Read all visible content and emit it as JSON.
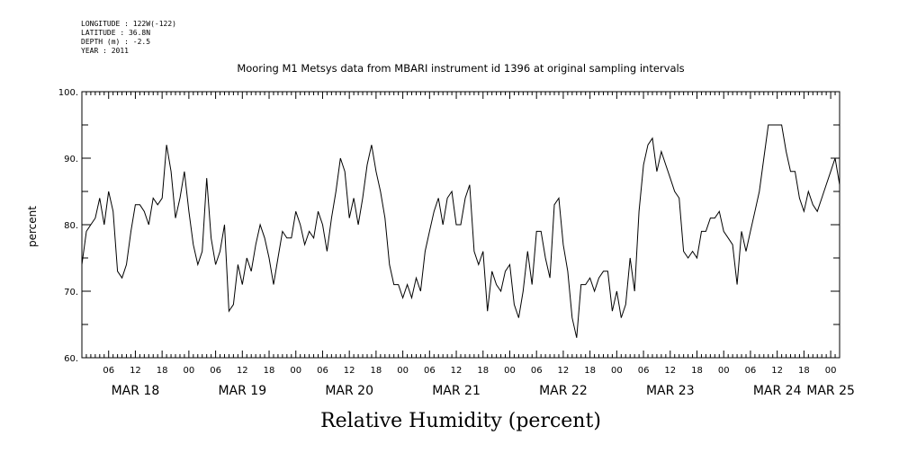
{
  "header": {
    "lines": [
      "LONGITUDE : 122W(-122)",
      "LATITUDE : 36.8N",
      "DEPTH (m) : -2.5",
      "YEAR : 2011"
    ]
  },
  "chart_data": {
    "type": "line",
    "title": "Mooring M1 Metsys data from MBARI instrument id 1396 at original sampling intervals",
    "xlabel": "Relative Humidity (percent)",
    "ylabel": "percent",
    "ylim": [
      60,
      100
    ],
    "yticks": [
      60,
      70,
      80,
      90,
      100
    ],
    "ytick_labels": [
      "60.",
      "70.",
      "80.",
      "90.",
      "100."
    ],
    "xlim_hours": [
      0,
      170
    ],
    "x_time_ticks": [
      {
        "h": 6,
        "label": "06"
      },
      {
        "h": 12,
        "label": "12"
      },
      {
        "h": 18,
        "label": "18"
      },
      {
        "h": 24,
        "label": "00"
      },
      {
        "h": 30,
        "label": "06"
      },
      {
        "h": 36,
        "label": "12"
      },
      {
        "h": 42,
        "label": "18"
      },
      {
        "h": 48,
        "label": "00"
      },
      {
        "h": 54,
        "label": "06"
      },
      {
        "h": 60,
        "label": "12"
      },
      {
        "h": 66,
        "label": "18"
      },
      {
        "h": 72,
        "label": "00"
      },
      {
        "h": 78,
        "label": "06"
      },
      {
        "h": 84,
        "label": "12"
      },
      {
        "h": 90,
        "label": "18"
      },
      {
        "h": 96,
        "label": "00"
      },
      {
        "h": 102,
        "label": "06"
      },
      {
        "h": 108,
        "label": "12"
      },
      {
        "h": 114,
        "label": "18"
      },
      {
        "h": 120,
        "label": "00"
      },
      {
        "h": 126,
        "label": "06"
      },
      {
        "h": 132,
        "label": "12"
      },
      {
        "h": 138,
        "label": "18"
      },
      {
        "h": 144,
        "label": "00"
      },
      {
        "h": 150,
        "label": "06"
      },
      {
        "h": 156,
        "label": "12"
      },
      {
        "h": 162,
        "label": "18"
      },
      {
        "h": 168,
        "label": "00"
      }
    ],
    "x_date_labels": [
      {
        "h": 12,
        "label": "MAR 18"
      },
      {
        "h": 36,
        "label": "MAR 19"
      },
      {
        "h": 60,
        "label": "MAR 20"
      },
      {
        "h": 84,
        "label": "MAR 21"
      },
      {
        "h": 108,
        "label": "MAR 22"
      },
      {
        "h": 132,
        "label": "MAR 23"
      },
      {
        "h": 156,
        "label": "MAR 24"
      },
      {
        "h": 168,
        "label": "MAR 25"
      }
    ],
    "series": [
      {
        "x": [
          0,
          1,
          2,
          3,
          4,
          5,
          6,
          7,
          8,
          9,
          10,
          11,
          12,
          13,
          14,
          15,
          16,
          17,
          18,
          19,
          20,
          21,
          22,
          23,
          24,
          25,
          26,
          27,
          28,
          29,
          30,
          31,
          32,
          33,
          34,
          35,
          36,
          37,
          38,
          39,
          40,
          41,
          42,
          43,
          44,
          45,
          46,
          47,
          48,
          49,
          50,
          51,
          52,
          53,
          54,
          55,
          56,
          57,
          58,
          59,
          60,
          61,
          62,
          63,
          64,
          65,
          66,
          67,
          68,
          69,
          70,
          71,
          72,
          73,
          74,
          75,
          76,
          77,
          78,
          79,
          80,
          81,
          82,
          83,
          84,
          85,
          86,
          87,
          88,
          89,
          90,
          91,
          92,
          93,
          94,
          95,
          96,
          97,
          98,
          99,
          100,
          101,
          102,
          103,
          104,
          105,
          106,
          107,
          108,
          109,
          110,
          111,
          112,
          113,
          114,
          115,
          116,
          117,
          118,
          119,
          120,
          121,
          122,
          123,
          124,
          125,
          126,
          127,
          128,
          129,
          130,
          131,
          132,
          133,
          134,
          135,
          136,
          137,
          138,
          139,
          140,
          141,
          142,
          143,
          144,
          145,
          146,
          147,
          148,
          149,
          150,
          151,
          152,
          153,
          154,
          155,
          156,
          157,
          158,
          159,
          160,
          161,
          162,
          163,
          164,
          165,
          166,
          167,
          168,
          169,
          170
        ],
        "y": [
          74,
          79,
          80,
          81,
          84,
          80,
          85,
          82,
          73,
          72,
          74,
          79,
          83,
          83,
          82,
          80,
          84,
          83,
          84,
          92,
          88,
          81,
          84,
          88,
          82,
          77,
          74,
          76,
          87,
          78,
          74,
          76,
          80,
          67,
          68,
          74,
          71,
          75,
          73,
          77,
          80,
          78,
          75,
          71,
          75,
          79,
          78,
          78,
          82,
          80,
          77,
          79,
          78,
          82,
          80,
          76,
          81,
          85,
          90,
          88,
          81,
          84,
          80,
          84,
          89,
          92,
          88,
          85,
          81,
          74,
          71,
          71,
          69,
          71,
          69,
          72,
          70,
          76,
          79,
          82,
          84,
          80,
          84,
          85,
          80,
          80,
          84,
          86,
          76,
          74,
          76,
          67,
          73,
          71,
          70,
          73,
          74,
          68,
          66,
          70,
          76,
          71,
          79,
          79,
          75,
          72,
          83,
          84,
          77,
          73,
          66,
          63,
          71,
          71,
          72,
          70,
          72,
          73,
          73,
          67,
          70,
          66,
          68,
          75,
          70,
          82,
          89,
          92,
          93,
          88,
          91,
          89,
          87,
          85,
          84,
          76,
          75,
          76,
          75,
          79,
          79,
          81,
          81,
          82,
          79,
          78,
          77,
          71,
          79,
          76,
          79,
          82,
          85,
          90,
          95,
          95,
          95,
          95,
          91,
          88,
          88,
          84,
          82,
          85,
          83,
          82,
          84,
          86,
          88,
          90,
          86
        ]
      }
    ]
  }
}
